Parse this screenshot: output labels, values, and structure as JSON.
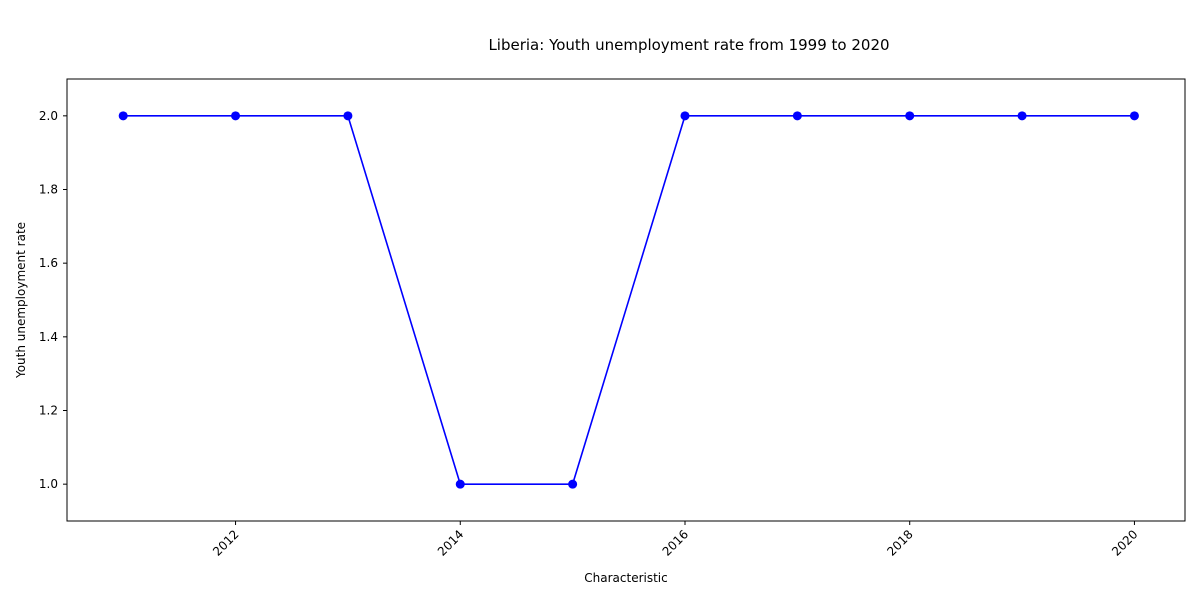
{
  "chart_data": {
    "type": "line",
    "title": "Liberia: Youth unemployment rate from 1999 to 2020",
    "xlabel": "Characteristic",
    "ylabel": "Youth unemployment rate",
    "x": [
      2011,
      2012,
      2013,
      2014,
      2015,
      2016,
      2017,
      2018,
      2019,
      2020
    ],
    "series": [
      {
        "values": [
          2,
          2,
          2,
          1,
          1,
          2,
          2,
          2,
          2,
          2
        ]
      }
    ],
    "xlim": [
      2010.5,
      2020.45
    ],
    "ylim": [
      0.9,
      2.1
    ],
    "x_ticks": [
      2012,
      2014,
      2016,
      2018,
      2020
    ],
    "x_tick_labels": [
      "2012",
      "2014",
      "2016",
      "2018",
      "2020"
    ],
    "y_ticks": [
      1.0,
      1.2,
      1.4,
      1.6,
      1.8,
      2.0
    ],
    "y_tick_labels": [
      "1.0",
      "1.2",
      "1.4",
      "1.6",
      "1.8",
      "2.0"
    ],
    "grid": false,
    "legend": "none",
    "colors": {
      "line": "#0000ff",
      "marker": "#0000ff",
      "axis": "#000000"
    }
  }
}
